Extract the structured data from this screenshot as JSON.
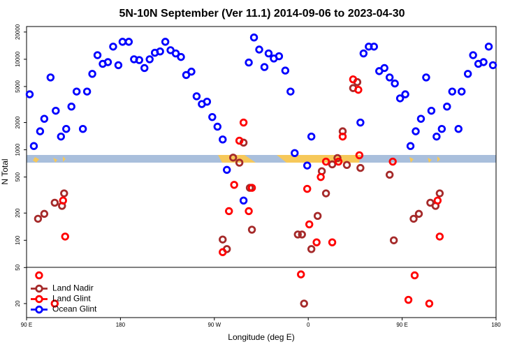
{
  "chart_data": {
    "type": "scatter",
    "title": "5N-10N September (Ver 11.1)   2014-09-06 to 2023-04-30",
    "x_label": "Longitude (deg E)",
    "y_label": "N Total",
    "log_y": true,
    "legend": "bottom-left",
    "xlim": [
      90,
      540
    ],
    "xticks": [
      {
        "value": 90,
        "label": "90 E"
      },
      180,
      {
        "value": 270,
        "label": "90 W"
      },
      {
        "value": 360,
        "label": "0"
      },
      {
        "value": 450,
        "label": "90 E"
      },
      {
        "value": 540,
        "label": "180"
      }
    ],
    "ylim": [
      14,
      23000
    ],
    "yticks": [
      20,
      50,
      100,
      200,
      500,
      1000,
      2000,
      5000,
      10000,
      20000
    ],
    "series": [
      {
        "name": "Land Nadir",
        "color": "#a52a2a",
        "x": [
          101,
          107,
          117,
          124,
          126,
          288,
          294,
          298,
          304,
          306,
          278,
          282,
          350,
          354,
          356,
          363,
          369,
          373,
          377,
          383,
          388,
          393,
          397,
          403,
          407,
          410,
          438,
          442,
          461,
          466,
          477,
          482,
          486
        ],
        "values": [
          173,
          196,
          260,
          240,
          330,
          820,
          720,
          1200,
          380,
          131,
          102,
          80,
          116,
          116,
          20,
          80,
          186,
          580,
          330,
          690,
          810,
          1600,
          680,
          4800,
          5600,
          630,
          530,
          100,
          173,
          196,
          260,
          240,
          330
        ]
      },
      {
        "name": "Land Glint",
        "color": "#ff0000",
        "x": [
          125,
          127,
          102,
          117,
          298,
          294,
          289,
          284,
          306,
          303,
          278,
          353,
          359,
          361,
          368,
          372,
          377,
          389,
          393,
          403,
          408,
          409,
          383,
          441,
          462,
          456,
          476,
          484,
          486
        ],
        "values": [
          275,
          110,
          41,
          20,
          2000,
          1260,
          410,
          210,
          380,
          210,
          74,
          42,
          370,
          150,
          95,
          500,
          740,
          740,
          1400,
          6000,
          4600,
          870,
          95,
          740,
          41,
          22,
          20,
          275,
          110
        ]
      },
      {
        "name": "Ocean Glint",
        "color": "#0000ff",
        "x": [
          93,
          97,
          103,
          107,
          113,
          118,
          123,
          128,
          133,
          138,
          144,
          148,
          153,
          158,
          163,
          168,
          173,
          178,
          182,
          188,
          193,
          198,
          203,
          208,
          213,
          218,
          223,
          228,
          233,
          238,
          243,
          248,
          253,
          258,
          263,
          268,
          273,
          278,
          282,
          298,
          303,
          308,
          313,
          318,
          322,
          327,
          332,
          338,
          343,
          347,
          359,
          363,
          410,
          413,
          418,
          423,
          428,
          433,
          438,
          443,
          448,
          453,
          458,
          463,
          468,
          473,
          478,
          483,
          488,
          493,
          498,
          504,
          507,
          513,
          518,
          523,
          528,
          533,
          537
        ],
        "values": [
          4100,
          1100,
          1600,
          2200,
          6300,
          2700,
          1400,
          1700,
          3000,
          4400,
          1700,
          4400,
          6900,
          11100,
          8900,
          9300,
          13800,
          8600,
          15600,
          15600,
          10000,
          9800,
          8000,
          10000,
          11800,
          12200,
          15600,
          12600,
          11600,
          10600,
          6700,
          7300,
          3900,
          3200,
          3400,
          2300,
          1800,
          1300,
          600,
          275,
          9200,
          17400,
          12800,
          8200,
          11600,
          10200,
          10800,
          7500,
          4400,
          920,
          670,
          1400,
          2000,
          11600,
          13800,
          13800,
          7400,
          8000,
          6300,
          5400,
          3700,
          4100,
          1100,
          1600,
          2200,
          6300,
          2700,
          1400,
          1700,
          3000,
          4400,
          1700,
          4400,
          6900,
          11100,
          8900,
          9300,
          13800,
          8600
        ]
      }
    ]
  }
}
